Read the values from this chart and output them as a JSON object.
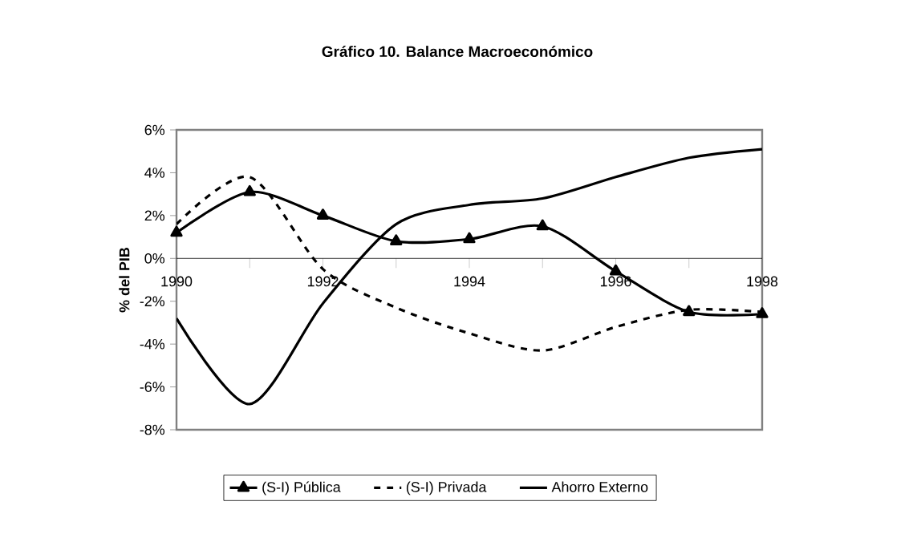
{
  "chart_data": {
    "type": "line",
    "title": "Gráfico 10. Balance Macroeconómico",
    "ylabel": "% del PIB",
    "x": [
      1990,
      1991,
      1992,
      1993,
      1994,
      1995,
      1996,
      1997,
      1998
    ],
    "series": [
      {
        "name": "(S-I) Pública",
        "color": "#000000",
        "marker": "triangle",
        "line_style": "solid",
        "values": [
          1.2,
          3.1,
          2.0,
          0.8,
          0.9,
          1.5,
          -0.6,
          -2.5,
          -2.6
        ]
      },
      {
        "name": "(S-I) Privada",
        "color": "#000000",
        "marker": "none",
        "line_style": "dashed",
        "values": [
          1.6,
          3.8,
          -0.5,
          -2.3,
          -3.5,
          -4.3,
          -3.2,
          -2.4,
          -2.5
        ]
      },
      {
        "name": "Ahorro Externo",
        "color": "#000000",
        "marker": "none",
        "line_style": "solid",
        "values": [
          -2.8,
          -6.8,
          -2.1,
          1.6,
          2.5,
          2.8,
          3.8,
          4.7,
          5.1
        ]
      }
    ],
    "xlim": [
      1990,
      1998
    ],
    "xticks": [
      1990,
      {
        "value": 1991,
        "label": null
      },
      1992,
      {
        "value": 1993,
        "label": null
      },
      1994,
      {
        "value": 1995,
        "label": null
      },
      1996,
      {
        "value": 1997,
        "label": null
      },
      1998
    ],
    "ylim": [
      -8,
      6
    ],
    "yticks": [
      {
        "value": -8,
        "label": "-8%"
      },
      {
        "value": -6,
        "label": "-6%"
      },
      {
        "value": -4,
        "label": "-4%"
      },
      {
        "value": -2,
        "label": "-2%"
      },
      {
        "value": 0,
        "label": "0%"
      },
      {
        "value": 2,
        "label": "2%"
      },
      {
        "value": 4,
        "label": "4%"
      },
      {
        "value": 6,
        "label": "6%"
      }
    ],
    "grid": false,
    "legend": "bottom"
  }
}
